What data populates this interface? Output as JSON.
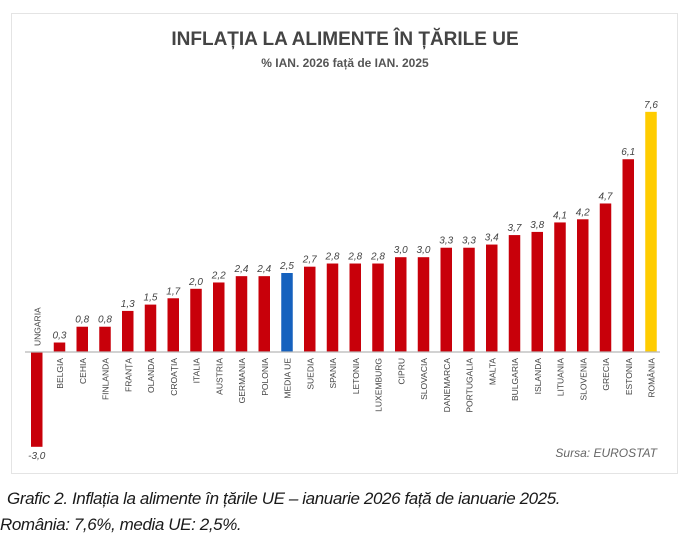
{
  "chart_data": {
    "type": "bar",
    "title": "INFLAȚIA LA ALIMENTE ÎN ȚĂRILE UE",
    "subtitle": "% IAN. 2026 față de IAN. 2025",
    "xlabel": "",
    "ylabel": "",
    "ylim": [
      -3.0,
      7.6
    ],
    "grid": false,
    "legend": "none",
    "source": "Sursa: EUROSTAT",
    "categories": [
      "UNGARIA",
      "BELGIA",
      "CEHIA",
      "FINLANDA",
      "FRANȚA",
      "OLANDA",
      "CROAȚIA",
      "ITALIA",
      "AUSTRIA",
      "GERMANIA",
      "POLONIA",
      "MEDIA UE",
      "SUEDIA",
      "SPANIA",
      "LETONIA",
      "LUXEMBURG",
      "CIPRU",
      "SLOVACIA",
      "DANEMARCA",
      "PORTUGALIA",
      "MALTA",
      "BULGARIA",
      "ISLANDA",
      "LITUANIA",
      "SLOVENIA",
      "GRECIA",
      "ESTONIA",
      "ROMÂNIA"
    ],
    "values": [
      -3.0,
      0.3,
      0.8,
      0.8,
      1.3,
      1.5,
      1.7,
      2.0,
      2.2,
      2.4,
      2.4,
      2.5,
      2.7,
      2.8,
      2.8,
      2.8,
      3.0,
      3.0,
      3.3,
      3.3,
      3.4,
      3.7,
      3.8,
      4.1,
      4.2,
      4.7,
      6.1,
      7.6
    ],
    "value_labels": [
      "-3,0",
      "0,3",
      "0,8",
      "0,8",
      "1,3",
      "1,5",
      "1,7",
      "2,0",
      "2,2",
      "2,4",
      "2,4",
      "2,5",
      "2,7",
      "2,8",
      "2,8",
      "2,8",
      "3,0",
      "3,0",
      "3,3",
      "3,3",
      "3,4",
      "3,7",
      "3,8",
      "4,1",
      "4,2",
      "4,7",
      "6,1",
      "7,6"
    ],
    "highlight": {
      "MEDIA UE": "blue",
      "ROMÂNIA": "yellow"
    },
    "colors": {
      "default": "#C8000A",
      "blue": "#1561BE",
      "yellow": "#FFCC00",
      "axis": "#b8b8b8",
      "title": "#444444",
      "label": "#444444"
    }
  },
  "caption": {
    "line1": "Grafic 2. Inflația la alimente în țările UE – ianuarie 2026 față de ianuarie 2025.",
    "line2": "România: 7,6%, media UE: 2,5%."
  }
}
